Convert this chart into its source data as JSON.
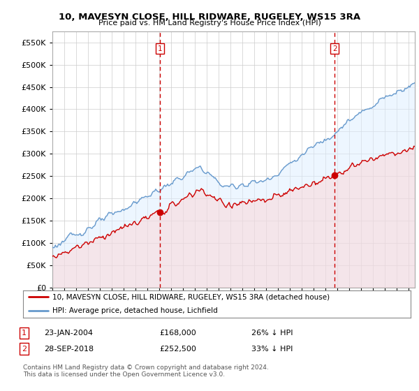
{
  "title": "10, MAVESYN CLOSE, HILL RIDWARE, RUGELEY, WS15 3RA",
  "subtitle": "Price paid vs. HM Land Registry's House Price Index (HPI)",
  "legend_label_red": "10, MAVESYN CLOSE, HILL RIDWARE, RUGELEY, WS15 3RA (detached house)",
  "legend_label_blue": "HPI: Average price, detached house, Lichfield",
  "transaction1_date": "23-JAN-2004",
  "transaction1_price": "£168,000",
  "transaction1_hpi": "26% ↓ HPI",
  "transaction2_date": "28-SEP-2018",
  "transaction2_price": "£252,500",
  "transaction2_hpi": "33% ↓ HPI",
  "footer": "Contains HM Land Registry data © Crown copyright and database right 2024.\nThis data is licensed under the Open Government Licence v3.0.",
  "ylim": [
    0,
    575000
  ],
  "yticks": [
    0,
    50000,
    100000,
    150000,
    200000,
    250000,
    300000,
    350000,
    400000,
    450000,
    500000,
    550000
  ],
  "marker1_x": 2004.07,
  "marker1_y": 168000,
  "marker2_x": 2018.75,
  "marker2_y": 252500,
  "vline1_x": 2004.07,
  "vline2_x": 2018.75,
  "red_color": "#cc0000",
  "blue_color": "#6699cc",
  "blue_fill": "#ddeeff",
  "red_fill": "#ffcccc",
  "vline_color": "#cc0000",
  "background_color": "#ffffff",
  "grid_color": "#cccccc",
  "xlim_start": 1995,
  "xlim_end": 2025.5
}
